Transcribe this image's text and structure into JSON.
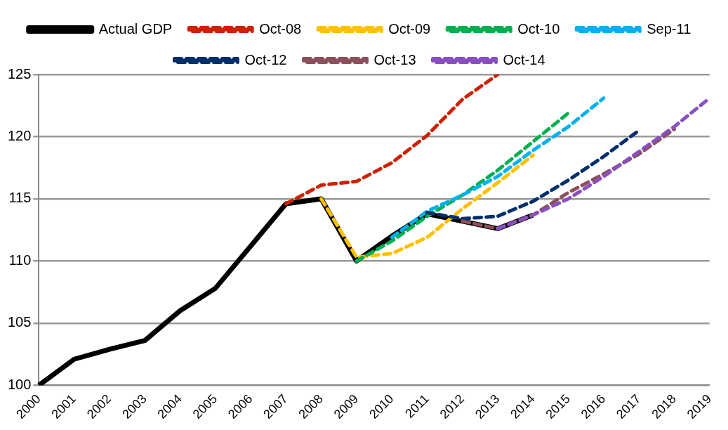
{
  "chart_data": {
    "type": "line",
    "categories": [
      "2000",
      "2001",
      "2002",
      "2003",
      "2004",
      "2005",
      "2006",
      "2007",
      "2008",
      "2009",
      "2010",
      "2011",
      "2012",
      "2013",
      "2014",
      "2015",
      "2016",
      "2017",
      "2018",
      "2019"
    ],
    "ylim": [
      100,
      125
    ],
    "yticks": [
      100,
      105,
      110,
      115,
      120,
      125
    ],
    "grid": "y",
    "legend": "top",
    "marker": "none",
    "series": [
      {
        "name": "Actual GDP",
        "color": "#000000",
        "line_style": "solid",
        "values": [
          100,
          102.1,
          102.9,
          103.6,
          106,
          107.8,
          111.2,
          114.6,
          115,
          110,
          112,
          113.8,
          113.2,
          112.6,
          113.7,
          null,
          null,
          null,
          null,
          null
        ]
      },
      {
        "name": "Oct-08",
        "color": "#cc2200",
        "line_style": "dashed",
        "values": [
          null,
          null,
          null,
          null,
          null,
          null,
          null,
          114.6,
          116.1,
          116.4,
          117.9,
          120.1,
          123,
          125,
          null,
          null,
          null,
          null,
          null,
          null
        ]
      },
      {
        "name": "Oct-09",
        "color": "#ffc000",
        "line_style": "dashed",
        "values": [
          null,
          null,
          null,
          null,
          null,
          null,
          null,
          null,
          115,
          110.3,
          110.6,
          111.9,
          114.2,
          116.3,
          118.5,
          null,
          null,
          null,
          null,
          null
        ]
      },
      {
        "name": "Oct-10",
        "color": "#00b050",
        "line_style": "dashed",
        "values": [
          null,
          null,
          null,
          null,
          null,
          null,
          null,
          null,
          null,
          110,
          111.6,
          113.6,
          115.3,
          117.3,
          119.6,
          121.9,
          null,
          null,
          null,
          null
        ]
      },
      {
        "name": "Sep-11",
        "color": "#00b0f0",
        "line_style": "dashed",
        "values": [
          null,
          null,
          null,
          null,
          null,
          null,
          null,
          null,
          null,
          null,
          111.9,
          114,
          115.3,
          116.8,
          118.9,
          120.8,
          123.1,
          null,
          null,
          null
        ]
      },
      {
        "name": "Oct-12",
        "color": "#002f6c",
        "line_style": "dashed",
        "values": [
          null,
          null,
          null,
          null,
          null,
          null,
          null,
          null,
          null,
          null,
          null,
          113.9,
          113.4,
          113.6,
          114.8,
          116.5,
          118.4,
          120.5,
          null,
          null
        ]
      },
      {
        "name": "Oct-13",
        "color": "#8c4f5c",
        "line_style": "dashed",
        "values": [
          null,
          null,
          null,
          null,
          null,
          null,
          null,
          null,
          null,
          null,
          null,
          null,
          113.2,
          112.6,
          113.7,
          115.5,
          117,
          118.6,
          120.6,
          null
        ]
      },
      {
        "name": "Oct-14",
        "color": "#8a4fbf",
        "line_style": "dashed",
        "values": [
          null,
          null,
          null,
          null,
          null,
          null,
          null,
          null,
          null,
          null,
          null,
          null,
          null,
          112.6,
          113.7,
          115,
          116.8,
          118.8,
          120.8,
          123.1
        ]
      }
    ]
  }
}
